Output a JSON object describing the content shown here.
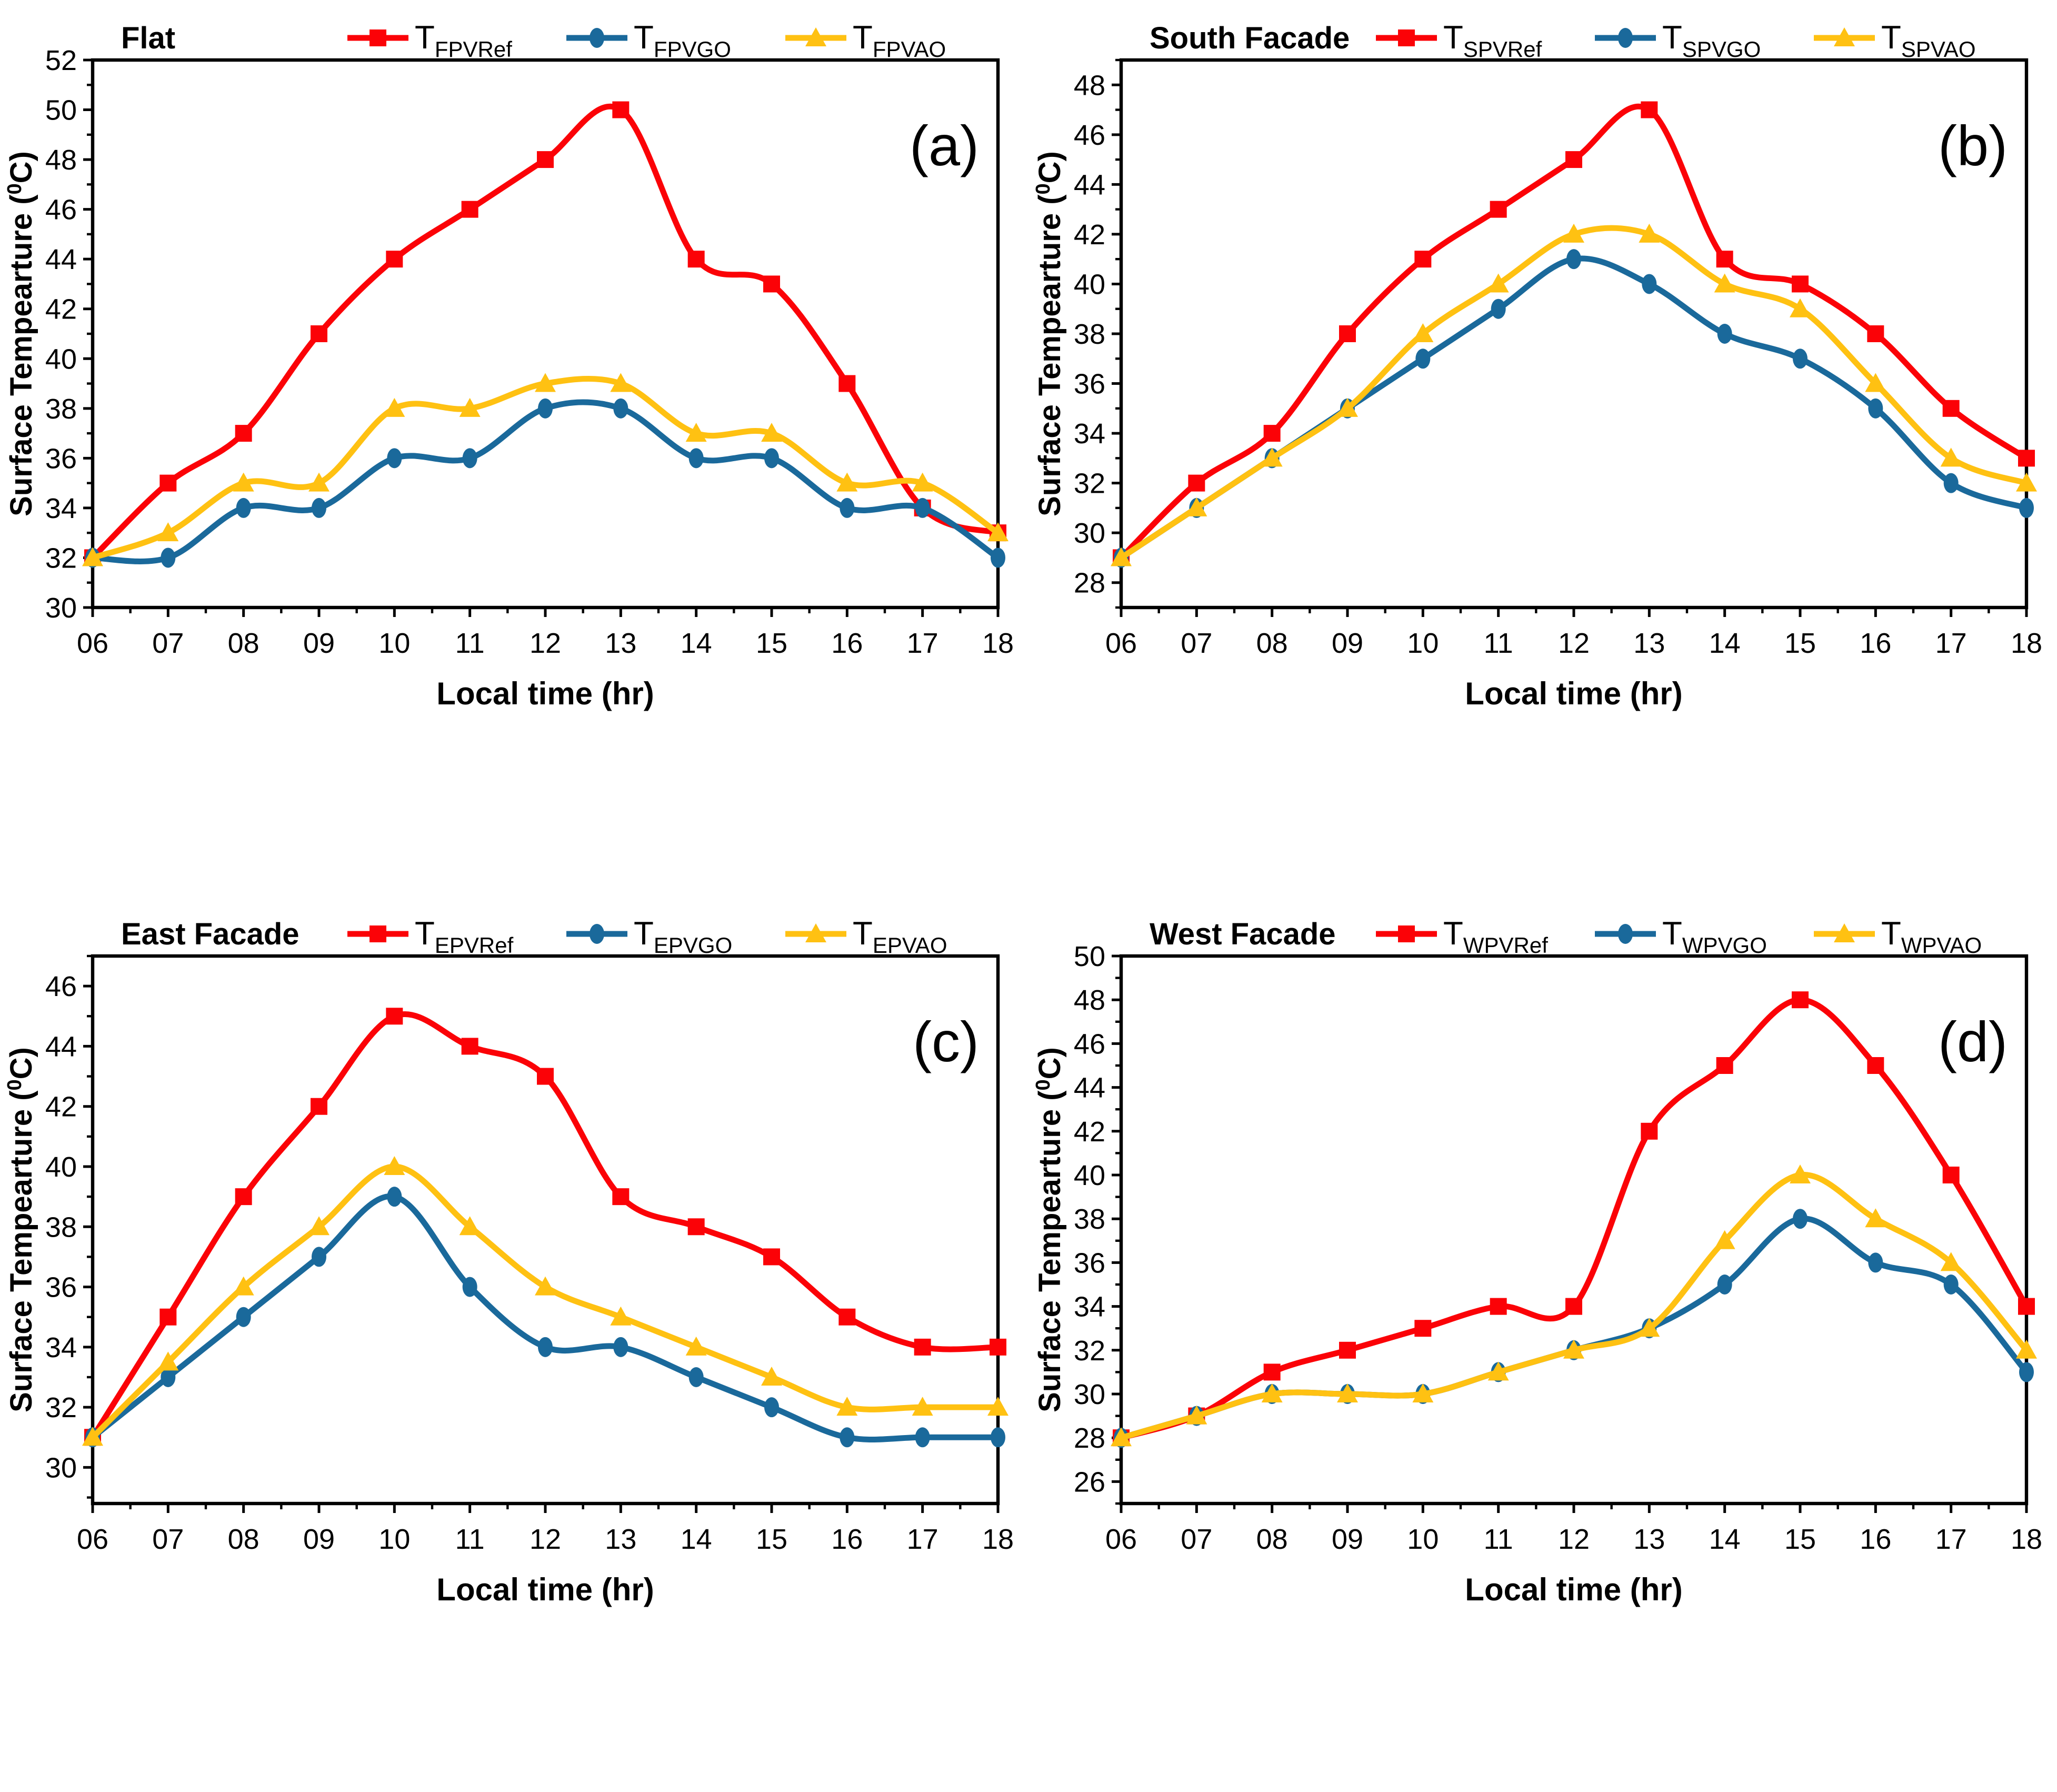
{
  "figure": {
    "background": "#FFFFFF",
    "frame_color": "#000000",
    "xlabel": "Local time (hr)",
    "ylabel": "Surface Tempearture (0C)"
  },
  "chart_data": [
    {
      "type": "line",
      "panel_letter": "(a)",
      "title": "Flat",
      "xlabel": "Local time (hr)",
      "ylabel": "Surface Tempearture (0C)",
      "x": [
        6,
        7,
        8,
        9,
        10,
        11,
        12,
        13,
        14,
        15,
        16,
        17,
        18
      ],
      "x_tick_labels": [
        "06",
        "07",
        "08",
        "09",
        "10",
        "11",
        "12",
        "13",
        "14",
        "15",
        "16",
        "17",
        "18"
      ],
      "ylim": [
        30,
        52
      ],
      "yticks": [
        30,
        32,
        34,
        36,
        38,
        40,
        42,
        44,
        46,
        48,
        50,
        52
      ],
      "grid": false,
      "legend_position": "top",
      "series": [
        {
          "name": "T_FPVRef",
          "label_main": "T",
          "label_sub": "FPVRef",
          "marker": "square",
          "color": "#FB0207",
          "values": [
            32,
            35,
            37,
            41,
            44,
            46,
            48,
            50,
            44,
            43,
            39,
            34,
            33
          ]
        },
        {
          "name": "T_FPVGO",
          "label_main": "T",
          "label_sub": "FPVGO",
          "marker": "circle",
          "color": "#1A699B",
          "values": [
            32,
            32,
            34,
            34,
            36,
            36,
            38,
            38,
            36,
            36,
            34,
            34,
            32
          ]
        },
        {
          "name": "T_FPVAO",
          "label_main": "T",
          "label_sub": "FPVAO",
          "marker": "triangle",
          "color": "#FFC112",
          "values": [
            32,
            33,
            35,
            35,
            38,
            38,
            39,
            39,
            37,
            37,
            35,
            35,
            33
          ]
        }
      ]
    },
    {
      "type": "line",
      "panel_letter": "(b)",
      "title": "South Facade",
      "xlabel": "Local time (hr)",
      "ylabel": "Surface Tempearture (0C)",
      "x": [
        6,
        7,
        8,
        9,
        10,
        11,
        12,
        13,
        14,
        15,
        16,
        17,
        18
      ],
      "x_tick_labels": [
        "06",
        "07",
        "08",
        "09",
        "10",
        "11",
        "12",
        "13",
        "14",
        "15",
        "16",
        "17",
        "18"
      ],
      "ylim": [
        27,
        49
      ],
      "yticks": [
        28,
        30,
        32,
        34,
        36,
        38,
        40,
        42,
        44,
        46,
        48
      ],
      "grid": false,
      "legend_position": "top",
      "series": [
        {
          "name": "T_SPVRef",
          "label_main": "T",
          "label_sub": "SPVRef",
          "marker": "square",
          "color": "#FB0207",
          "values": [
            29,
            32,
            34,
            38,
            41,
            43,
            45,
            47,
            41,
            40,
            38,
            35,
            33
          ]
        },
        {
          "name": "T_SPVGO",
          "label_main": "T",
          "label_sub": "SPVGO",
          "marker": "circle",
          "color": "#1A699B",
          "values": [
            29,
            31,
            33,
            35,
            37,
            39,
            41,
            40,
            38,
            37,
            35,
            32,
            31
          ]
        },
        {
          "name": "T_SPVAO",
          "label_main": "T",
          "label_sub": "SPVAO",
          "marker": "triangle",
          "color": "#FFC112",
          "values": [
            29,
            31,
            33,
            35,
            38,
            40,
            42,
            42,
            40,
            39,
            36,
            33,
            32
          ]
        }
      ]
    },
    {
      "type": "line",
      "panel_letter": "(c)",
      "title": "East Facade",
      "xlabel": "Local time (hr)",
      "ylabel": "Surface Tempearture (0C)",
      "x": [
        6,
        7,
        8,
        9,
        10,
        11,
        12,
        13,
        14,
        15,
        16,
        17,
        18
      ],
      "x_tick_labels": [
        "06",
        "07",
        "08",
        "09",
        "10",
        "11",
        "12",
        "13",
        "14",
        "15",
        "16",
        "17",
        "18"
      ],
      "ylim": [
        28.8,
        47
      ],
      "yticks": [
        30,
        32,
        34,
        36,
        38,
        40,
        42,
        44,
        46
      ],
      "grid": false,
      "legend_position": "top",
      "series": [
        {
          "name": "T_EPVRef",
          "label_main": "T",
          "label_sub": "EPVRef",
          "marker": "square",
          "color": "#FB0207",
          "values": [
            31,
            35,
            39,
            42,
            45,
            44,
            43,
            39,
            38,
            37,
            35,
            34,
            34
          ]
        },
        {
          "name": "T_EPVGO",
          "label_main": "T",
          "label_sub": "EPVGO",
          "marker": "circle",
          "color": "#1A699B",
          "values": [
            31,
            33,
            35,
            37,
            39,
            36,
            34,
            34,
            33,
            32,
            31,
            31,
            31
          ]
        },
        {
          "name": "T_EPVAO",
          "label_main": "T",
          "label_sub": "EPVAO",
          "marker": "triangle",
          "color": "#FFC112",
          "values": [
            31,
            33.5,
            36,
            38,
            40,
            38,
            36,
            35,
            34,
            33,
            32,
            32,
            32
          ]
        }
      ]
    },
    {
      "type": "line",
      "panel_letter": "(d)",
      "title": "West Facade",
      "xlabel": "Local time (hr)",
      "ylabel": "Surface Tempearture (0C)",
      "x": [
        6,
        7,
        8,
        9,
        10,
        11,
        12,
        13,
        14,
        15,
        16,
        17,
        18
      ],
      "x_tick_labels": [
        "06",
        "07",
        "08",
        "09",
        "10",
        "11",
        "12",
        "13",
        "14",
        "15",
        "16",
        "17",
        "18"
      ],
      "ylim": [
        25,
        50
      ],
      "yticks": [
        26,
        28,
        30,
        32,
        34,
        36,
        38,
        40,
        42,
        44,
        46,
        48,
        50
      ],
      "grid": false,
      "legend_position": "top",
      "series": [
        {
          "name": "T_WPVRef",
          "label_main": "T",
          "label_sub": "WPVRef",
          "marker": "square",
          "color": "#FB0207",
          "values": [
            28,
            29,
            31,
            32,
            33,
            34,
            34,
            42,
            45,
            48,
            45,
            40,
            34
          ]
        },
        {
          "name": "T_WPVGO",
          "label_main": "T",
          "label_sub": "WPVGO",
          "marker": "circle",
          "color": "#1A699B",
          "values": [
            28,
            29,
            30,
            30,
            30,
            31,
            32,
            33,
            35,
            38,
            36,
            35,
            31
          ]
        },
        {
          "name": "T_WPVAO",
          "label_main": "T",
          "label_sub": "WPVAO",
          "marker": "triangle",
          "color": "#FFC112",
          "values": [
            28,
            29,
            30,
            30,
            30,
            31,
            32,
            33,
            37,
            40,
            38,
            36,
            32
          ]
        }
      ]
    }
  ]
}
